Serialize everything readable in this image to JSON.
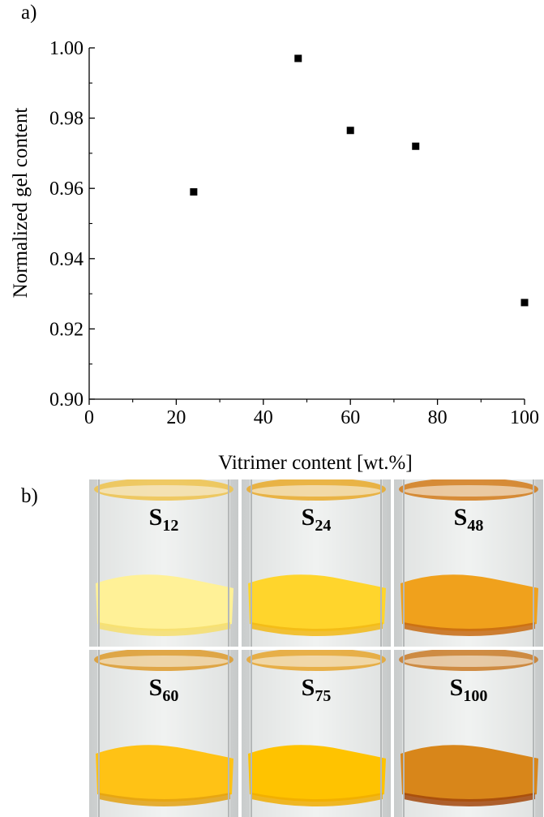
{
  "panels": {
    "a": "a)",
    "b": "b)"
  },
  "chart_data": {
    "type": "scatter",
    "title": "",
    "xlabel": "Vitrimer content [wt.%]",
    "ylabel": "Normalized gel content",
    "xlim": [
      0,
      100
    ],
    "ylim": [
      0.9,
      1.0
    ],
    "xticks": [
      "0",
      "20",
      "40",
      "60",
      "80",
      "100"
    ],
    "yticks": [
      "0.90",
      "0.92",
      "0.94",
      "0.96",
      "0.98",
      "1.00"
    ],
    "grid": false,
    "marker": "square",
    "marker_color": "#000000",
    "points": [
      {
        "x": 24,
        "y": 0.959
      },
      {
        "x": 48,
        "y": 0.997
      },
      {
        "x": 60,
        "y": 0.9765
      },
      {
        "x": 75,
        "y": 0.972
      },
      {
        "x": 100,
        "y": 0.9275
      }
    ]
  },
  "photos": {
    "samples": [
      {
        "label": "S",
        "sub": "12",
        "liquid": "#efc24a",
        "solid": "#fff197",
        "solid_edge": "#f6de6c"
      },
      {
        "label": "S",
        "sub": "24",
        "liquid": "#e9a928",
        "solid": "#ffd52c",
        "solid_edge": "#f2b814"
      },
      {
        "label": "S",
        "sub": "48",
        "liquid": "#d27a18",
        "solid": "#f0a11c",
        "solid_edge": "#c76a10"
      },
      {
        "label": "S",
        "sub": "60",
        "liquid": "#dd9a2a",
        "solid": "#ffc215",
        "solid_edge": "#e3a111"
      },
      {
        "label": "S",
        "sub": "75",
        "liquid": "#e6a52c",
        "solid": "#ffc300",
        "solid_edge": "#f0ad00"
      },
      {
        "label": "S",
        "sub": "100",
        "liquid": "#c97a26",
        "solid": "#d8861a",
        "solid_edge": "#a2470b"
      }
    ]
  }
}
